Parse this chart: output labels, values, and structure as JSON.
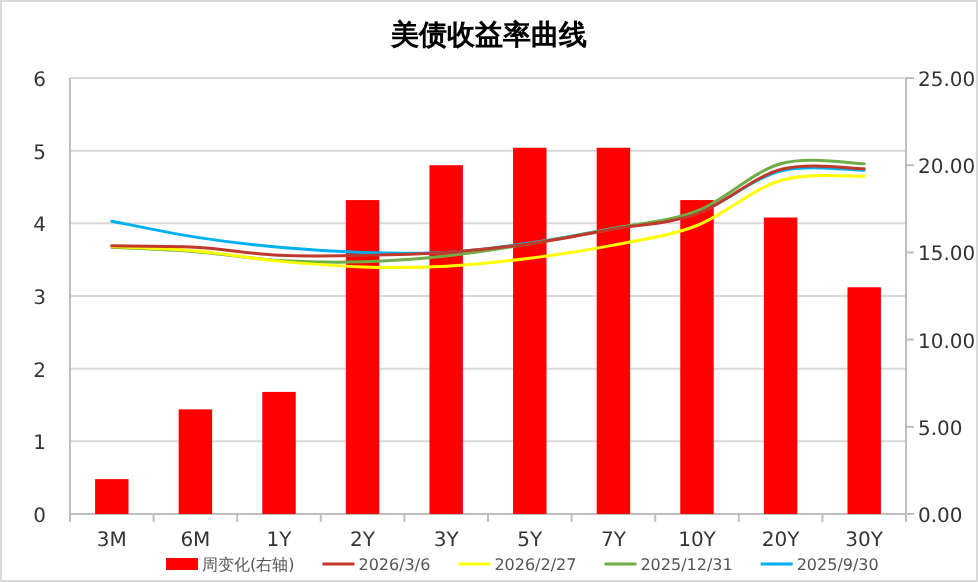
{
  "chart_data": {
    "type": "line",
    "title": "美债收益率曲线",
    "categories": [
      "3M",
      "6M",
      "1Y",
      "2Y",
      "3Y",
      "5Y",
      "7Y",
      "10Y",
      "20Y",
      "30Y"
    ],
    "series": [
      {
        "name": "周变化(右轴)",
        "type": "bar",
        "axis": "y2",
        "color": "#ff0000",
        "values": [
          2.0,
          6.0,
          7.0,
          18.0,
          20.0,
          21.0,
          21.0,
          18.0,
          17.0,
          13.0
        ]
      },
      {
        "name": "2026/3/6",
        "color": "#c0392b",
        "values": [
          3.69,
          3.67,
          3.56,
          3.56,
          3.6,
          3.72,
          3.92,
          4.13,
          4.74,
          4.75
        ]
      },
      {
        "name": "2026/2/27",
        "color": "#ffff00",
        "values": [
          3.68,
          3.62,
          3.48,
          3.4,
          3.41,
          3.52,
          3.7,
          3.97,
          4.59,
          4.65
        ]
      },
      {
        "name": "2025/12/31",
        "color": "#70ad47",
        "values": [
          3.67,
          3.61,
          3.49,
          3.47,
          3.55,
          3.72,
          3.93,
          4.17,
          4.82,
          4.82
        ]
      },
      {
        "name": "2025/9/30",
        "color": "#00b0f0",
        "values": [
          4.03,
          3.81,
          3.67,
          3.6,
          3.6,
          3.73,
          3.93,
          4.14,
          4.72,
          4.73
        ]
      }
    ],
    "ylim": [
      0,
      6
    ],
    "yticks": [
      0,
      1,
      2,
      3,
      4,
      5,
      6
    ],
    "y2lim": [
      0,
      25
    ],
    "y2ticks": [
      {
        "value": 0,
        "label": "0.00"
      },
      {
        "value": 5,
        "label": "5.00"
      },
      {
        "value": 10,
        "label": "10.00"
      },
      {
        "value": 15,
        "label": "15.00"
      },
      {
        "value": 20,
        "label": "20.00"
      },
      {
        "value": 25,
        "label": "25.00"
      }
    ],
    "grid": "y",
    "legend": "bottom",
    "marker": "none",
    "line_style": "solid"
  }
}
